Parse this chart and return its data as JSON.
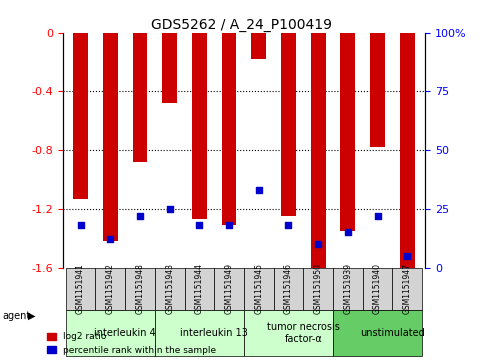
{
  "title": "GDS5262 / A_24_P100419",
  "samples": [
    "GSM1151941",
    "GSM1151942",
    "GSM1151948",
    "GSM1151943",
    "GSM1151944",
    "GSM1151949",
    "GSM1151945",
    "GSM1151946",
    "GSM1151950",
    "GSM1151939",
    "GSM1151940",
    "GSM1151947"
  ],
  "log2_ratio": [
    -1.13,
    -1.42,
    -0.88,
    -0.48,
    -1.27,
    -1.31,
    -0.18,
    -1.25,
    -1.6,
    -1.35,
    -0.78,
    -1.6
  ],
  "percentile_rank": [
    18,
    12,
    22,
    25,
    18,
    18,
    33,
    18,
    10,
    15,
    22,
    5
  ],
  "agents": [
    {
      "label": "interleukin 4",
      "start": 0,
      "end": 3,
      "color": "#ccffcc"
    },
    {
      "label": "interleukin 13",
      "start": 3,
      "end": 6,
      "color": "#ccffcc"
    },
    {
      "label": "tumor necrosis\nfactor-α",
      "start": 6,
      "end": 9,
      "color": "#ccffcc"
    },
    {
      "label": "unstimulated",
      "start": 9,
      "end": 12,
      "color": "#66cc66"
    }
  ],
  "ylim_left": [
    -1.6,
    0
  ],
  "ylim_right": [
    0,
    100
  ],
  "yticks_left": [
    -1.6,
    -1.2,
    -0.8,
    -0.4,
    0
  ],
  "yticks_right": [
    0,
    25,
    50,
    75,
    100
  ],
  "bar_color": "#cc0000",
  "percentile_color": "#0000cc",
  "background_color": "#ffffff",
  "sample_box_color": "#d3d3d3"
}
